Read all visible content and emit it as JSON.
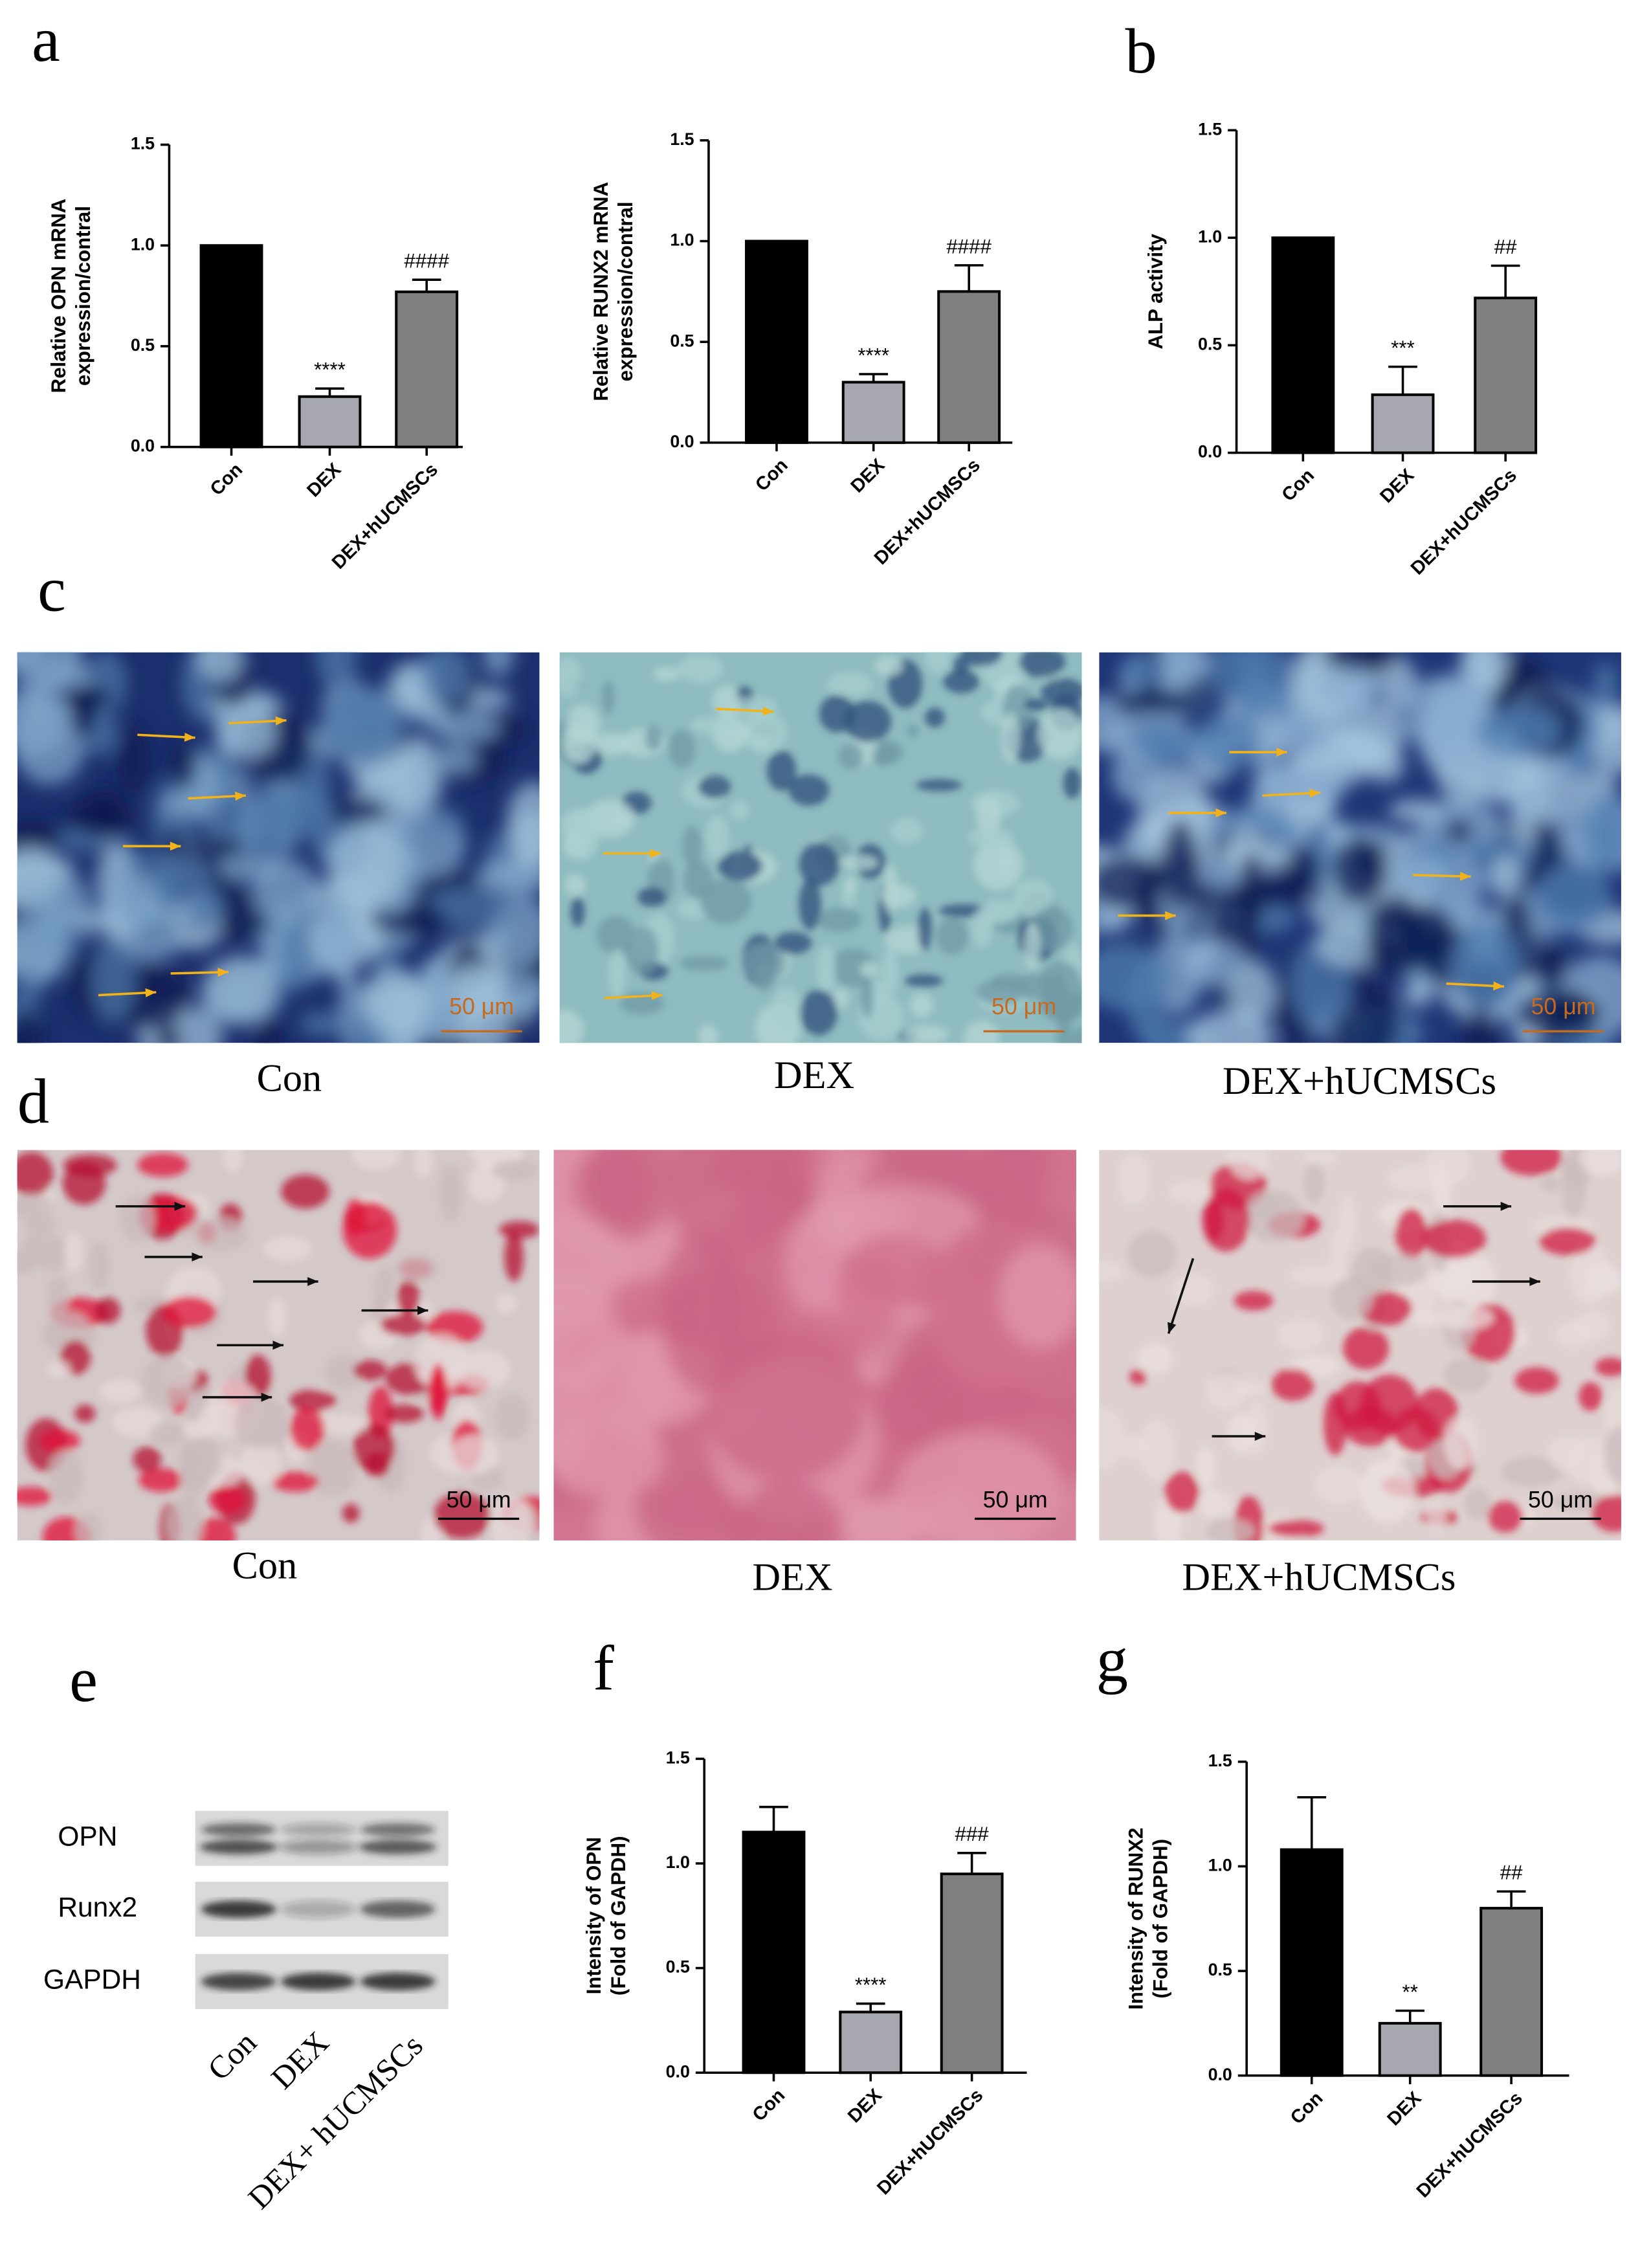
{
  "panel_labels": [
    "a",
    "b",
    "c",
    "d",
    "e",
    "f",
    "g"
  ],
  "chart_data": [
    {
      "type": "bar",
      "ylabel": [
        "Relative OPN mRNA",
        "expression/contral"
      ],
      "categories": [
        "Con",
        "DEX",
        "DEX+hUCMSCs"
      ],
      "values": [
        1.0,
        0.25,
        0.77
      ],
      "errors": [
        0,
        0.04,
        0.06
      ],
      "colors": [
        "#000000",
        "#a7a7af",
        "#7f7f7f"
      ],
      "annotations": [
        null,
        "****",
        "####"
      ],
      "ylim": [
        0,
        1.5
      ],
      "yticks": [
        {
          "value": 0,
          "label": "0.0"
        },
        0.5,
        {
          "value": 1,
          "label": "1.0"
        },
        1.5
      ]
    },
    {
      "type": "bar",
      "ylabel": [
        "Relative RUNX2 mRNA",
        "expression/contral"
      ],
      "categories": [
        "Con",
        "DEX",
        "DEX+hUCMSCs"
      ],
      "values": [
        1.0,
        0.3,
        0.75
      ],
      "errors": [
        0,
        0.04,
        0.13
      ],
      "colors": [
        "#000000",
        "#a7a7af",
        "#7f7f7f"
      ],
      "annotations": [
        null,
        "****",
        "####"
      ],
      "ylim": [
        0,
        1.5
      ],
      "yticks": [
        {
          "value": 0,
          "label": "0.0"
        },
        0.5,
        {
          "value": 1,
          "label": "1.0"
        },
        1.5
      ]
    },
    {
      "type": "bar",
      "ylabel": [
        "ALP activity"
      ],
      "categories": [
        "Con",
        "DEX",
        "DEX+hUCMSCs"
      ],
      "values": [
        1.0,
        0.27,
        0.72
      ],
      "errors": [
        0,
        0.13,
        0.15
      ],
      "colors": [
        "#000000",
        "#a7a7af",
        "#7f7f7f"
      ],
      "annotations": [
        null,
        "***",
        "##"
      ],
      "ylim": [
        0,
        1.5
      ],
      "yticks": [
        {
          "value": 0,
          "label": "0.0"
        },
        0.5,
        {
          "value": 1,
          "label": "1.0"
        },
        1.5
      ]
    },
    {
      "type": "bar",
      "ylabel": [
        "Intensity of OPN",
        "(Fold of GAPDH)"
      ],
      "categories": [
        "Con",
        "DEX",
        "DEX+hUCMSCs"
      ],
      "values": [
        1.15,
        0.29,
        0.95
      ],
      "errors": [
        0.12,
        0.04,
        0.1
      ],
      "colors": [
        "#000000",
        "#a7a7af",
        "#7f7f7f"
      ],
      "annotations": [
        null,
        "****",
        "###"
      ],
      "ylim": [
        0,
        1.5
      ],
      "yticks": [
        {
          "value": 0,
          "label": "0.0"
        },
        0.5,
        {
          "value": 1,
          "label": "1.0"
        },
        1.5
      ]
    },
    {
      "type": "bar",
      "ylabel": [
        "Intensity of RUNX2",
        "(Fold of GAPDH)"
      ],
      "categories": [
        "Con",
        "DEX",
        "DEX+hUCMSCs"
      ],
      "values": [
        1.08,
        0.25,
        0.8
      ],
      "errors": [
        0.25,
        0.06,
        0.08
      ],
      "colors": [
        "#000000",
        "#a7a7af",
        "#7f7f7f"
      ],
      "annotations": [
        null,
        "**",
        "##"
      ],
      "ylim": [
        0,
        1.5
      ],
      "yticks": [
        {
          "value": 0,
          "label": "0.0"
        },
        0.5,
        {
          "value": 1,
          "label": "1.0"
        },
        1.5
      ]
    }
  ],
  "alp_staining": [
    {
      "caption": "Con",
      "scale_bar": "50 μm"
    },
    {
      "caption": "DEX",
      "scale_bar": "50 μm"
    },
    {
      "caption": "DEX+hUCMSCs",
      "scale_bar": "50 μm"
    }
  ],
  "alizarin_staining": [
    {
      "caption": "Con",
      "scale_bar": "50 μm"
    },
    {
      "caption": "DEX",
      "scale_bar": "50 μm"
    },
    {
      "caption": "DEX+hUCMSCs",
      "scale_bar": "50 μm"
    }
  ],
  "western_blot": {
    "rows": [
      "OPN",
      "Runx2",
      "GAPDH"
    ],
    "lanes": [
      "Con",
      "DEX",
      "DEX+ hUCMSCs"
    ]
  }
}
